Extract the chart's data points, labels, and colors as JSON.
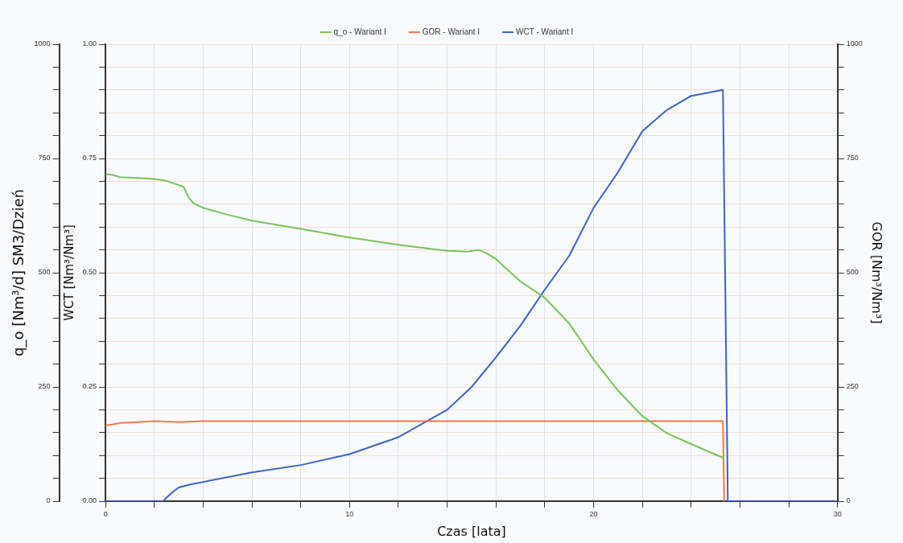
{
  "chart_data": {
    "type": "line",
    "xlabel": "Czas [lata]",
    "ylabel": "q_o [Nm³/d] SM3/Dzień",
    "y2label": "WCT [Nm³/Nm³]",
    "y3label": "GOR [Nm³/Nm³]",
    "xlim": [
      0,
      30
    ],
    "xticks": [
      0,
      {
        "value": 2,
        "label": null
      },
      {
        "value": 4,
        "label": null
      },
      {
        "value": 6,
        "label": null
      },
      {
        "value": 8,
        "label": null
      },
      10,
      {
        "value": 12,
        "label": null
      },
      {
        "value": 14,
        "label": null
      },
      {
        "value": 16,
        "label": null
      },
      {
        "value": 18,
        "label": null
      },
      20,
      {
        "value": 22,
        "label": null
      },
      {
        "value": 24,
        "label": null
      },
      {
        "value": 26,
        "label": null
      },
      {
        "value": 28,
        "label": null
      },
      30
    ],
    "ylim": [
      0,
      1000
    ],
    "yticks": [
      0,
      {
        "value": 50,
        "label": null
      },
      {
        "value": 100,
        "label": null
      },
      {
        "value": 150,
        "label": null
      },
      {
        "value": 200,
        "label": null
      },
      250,
      {
        "value": 300,
        "label": null
      },
      {
        "value": 350,
        "label": null
      },
      {
        "value": 400,
        "label": null
      },
      {
        "value": 450,
        "label": null
      },
      500,
      {
        "value": 550,
        "label": null
      },
      {
        "value": 600,
        "label": null
      },
      {
        "value": 650,
        "label": null
      },
      {
        "value": 700,
        "label": null
      },
      750,
      {
        "value": 800,
        "label": null
      },
      {
        "value": 850,
        "label": null
      },
      {
        "value": 900,
        "label": null
      },
      {
        "value": 950,
        "label": null
      },
      1000
    ],
    "y2lim": [
      0,
      1
    ],
    "y2ticks": [
      {
        "value": 0,
        "label": "0.00"
      },
      {
        "value": 0.05,
        "label": null
      },
      {
        "value": 0.1,
        "label": null
      },
      {
        "value": 0.15,
        "label": null
      },
      {
        "value": 0.2,
        "label": null
      },
      0.25,
      {
        "value": 0.3,
        "label": null
      },
      {
        "value": 0.35,
        "label": null
      },
      {
        "value": 0.4,
        "label": null
      },
      {
        "value": 0.45,
        "label": null
      },
      {
        "value": 0.5,
        "label": "0.50"
      },
      {
        "value": 0.55,
        "label": null
      },
      {
        "value": 0.6,
        "label": null
      },
      {
        "value": 0.65,
        "label": null
      },
      {
        "value": 0.7,
        "label": null
      },
      0.75,
      {
        "value": 0.8,
        "label": null
      },
      {
        "value": 0.85,
        "label": null
      },
      {
        "value": 0.9,
        "label": null
      },
      {
        "value": 0.95,
        "label": null
      },
      {
        "value": 1,
        "label": "1.00"
      }
    ],
    "y3lim": [
      0,
      1000
    ],
    "y3ticks": [
      0,
      {
        "value": 50,
        "label": null
      },
      {
        "value": 100,
        "label": null
      },
      {
        "value": 150,
        "label": null
      },
      {
        "value": 200,
        "label": null
      },
      250,
      {
        "value": 300,
        "label": null
      },
      {
        "value": 350,
        "label": null
      },
      {
        "value": 400,
        "label": null
      },
      {
        "value": 450,
        "label": null
      },
      500,
      {
        "value": 550,
        "label": null
      },
      {
        "value": 600,
        "label": null
      },
      {
        "value": 650,
        "label": null
      },
      {
        "value": 700,
        "label": null
      },
      750,
      {
        "value": 800,
        "label": null
      },
      {
        "value": 850,
        "label": null
      },
      {
        "value": 900,
        "label": null
      },
      {
        "value": 950,
        "label": null
      },
      1000
    ],
    "grid": true,
    "legend": "top",
    "marker": "none",
    "line_style": "solid",
    "series": [
      {
        "name": "q_o - Wariant I",
        "color": "#77c35a",
        "axis": "y",
        "x": [
          0,
          0.3,
          0.6,
          1,
          2,
          2.5,
          3.2,
          3.4,
          3.6,
          4,
          5,
          6,
          8,
          10,
          12,
          14,
          14.8,
          15.3,
          15.6,
          16,
          16.3,
          17,
          18,
          19,
          20,
          21,
          22,
          23,
          24,
          25.3
        ],
        "values": [
          716,
          714,
          709,
          708,
          705,
          701,
          688,
          665,
          652,
          642,
          627,
          614,
          596,
          577,
          561,
          548,
          546,
          550,
          543,
          530,
          515,
          481,
          445,
          389,
          310,
          242,
          186,
          149,
          125,
          95
        ]
      },
      {
        "name": "GOR - Wariant I",
        "color": "#f07850",
        "axis": "y3",
        "x": [
          0,
          0.3,
          0.6,
          1,
          2,
          3,
          4,
          10,
          20,
          25.3,
          25.35
        ],
        "values": [
          166,
          168,
          171,
          172,
          175,
          173,
          175,
          175,
          175,
          175,
          0
        ]
      },
      {
        "name": "WCT - Wariant I",
        "color": "#3a62c8",
        "axis": "y2",
        "x": [
          0,
          2.37,
          2.5,
          2.8,
          3,
          3.5,
          4,
          6,
          8,
          10,
          12,
          14,
          15,
          16,
          17,
          18,
          19,
          20,
          21,
          22,
          23,
          24,
          25.3,
          25.5,
          30
        ],
        "values": [
          0,
          0,
          0.008,
          0.022,
          0.03,
          0.037,
          0.042,
          0.063,
          0.079,
          0.103,
          0.14,
          0.2,
          0.25,
          0.315,
          0.384,
          0.463,
          0.537,
          0.642,
          0.72,
          0.81,
          0.856,
          0.887,
          0.9,
          0,
          0
        ]
      }
    ]
  }
}
